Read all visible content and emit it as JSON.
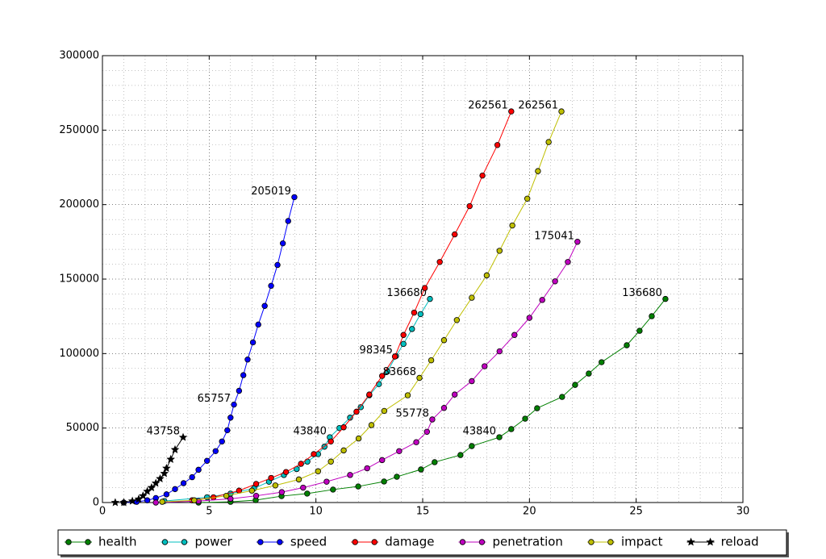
{
  "chart_data": {
    "type": "line",
    "xlim": [
      0,
      30
    ],
    "xticks": [
      0,
      5,
      10,
      15,
      20,
      25,
      30
    ],
    "ylim": [
      0,
      300000
    ],
    "yticks": [
      0,
      50000,
      100000,
      150000,
      200000,
      250000,
      300000
    ],
    "grid": true,
    "minor_grid": true,
    "legend": "bottom",
    "series": [
      {
        "name": "health",
        "color": "#008000",
        "marker": "circle",
        "x": [
          4.5,
          6.0,
          7.18,
          8.39,
          9.59,
          10.8,
          11.98,
          13.19,
          13.79,
          14.92,
          15.56,
          16.77,
          17.3,
          18.59,
          19.15,
          19.8,
          20.36,
          21.53,
          22.14,
          22.78,
          23.38,
          24.56,
          25.16,
          25.73,
          26.37
        ],
        "values": [
          0,
          500,
          1600,
          4300,
          6000,
          8700,
          10800,
          14100,
          17300,
          22200,
          27100,
          31900,
          37900,
          43840,
          49300,
          56300,
          63300,
          70900,
          79000,
          86600,
          94200,
          105600,
          115300,
          125100,
          136680
        ],
        "value_labels": [
          null,
          null,
          null,
          null,
          null,
          null,
          null,
          null,
          null,
          null,
          null,
          null,
          null,
          "43840",
          null,
          null,
          null,
          null,
          null,
          null,
          null,
          null,
          null,
          null,
          "136680"
        ]
      },
      {
        "name": "power",
        "color": "#00bfbf",
        "marker": "circle",
        "x": [
          2.9,
          4.9,
          6.0,
          7.1,
          7.8,
          8.5,
          9.1,
          9.6,
          10.1,
          10.4,
          10.65,
          11.1,
          11.6,
          12.1,
          12.5,
          12.95,
          13.35,
          13.75,
          14.1,
          14.5,
          14.9,
          15.34
        ],
        "values": [
          1000,
          3500,
          6000,
          9500,
          14000,
          18500,
          22500,
          27500,
          32500,
          37500,
          43840,
          50000,
          57000,
          64000,
          72000,
          79500,
          88000,
          98345,
          106500,
          116500,
          126500,
          136680
        ],
        "value_labels": [
          null,
          null,
          null,
          null,
          null,
          null,
          null,
          null,
          null,
          null,
          "43840",
          null,
          null,
          null,
          null,
          null,
          null,
          "98345",
          null,
          null,
          null,
          "136680"
        ]
      },
      {
        "name": "speed",
        "color": "#0000ff",
        "marker": "circle",
        "x": [
          1.0,
          1.6,
          2.1,
          2.5,
          3.0,
          3.4,
          3.8,
          4.2,
          4.5,
          4.9,
          5.3,
          5.6,
          5.85,
          6.0,
          6.16,
          6.4,
          6.6,
          6.8,
          7.05,
          7.3,
          7.6,
          7.9,
          8.2,
          8.45,
          8.7,
          8.99
        ],
        "values": [
          0,
          500,
          1500,
          3000,
          5500,
          9000,
          13000,
          17000,
          22000,
          28000,
          34500,
          41000,
          48500,
          57000,
          65757,
          75000,
          85500,
          96000,
          107500,
          119500,
          132000,
          145500,
          159500,
          174000,
          189000,
          205019
        ],
        "value_labels": [
          null,
          null,
          null,
          null,
          null,
          null,
          null,
          null,
          null,
          null,
          null,
          null,
          null,
          null,
          "65757",
          null,
          null,
          null,
          null,
          null,
          null,
          null,
          null,
          null,
          null,
          "205019"
        ]
      },
      {
        "name": "damage",
        "color": "#ff0000",
        "marker": "circle",
        "x": [
          4.2,
          5.2,
          6.4,
          7.2,
          7.9,
          8.6,
          9.3,
          9.9,
          10.7,
          11.3,
          11.9,
          12.5,
          13.1,
          13.7,
          14.1,
          14.6,
          15.1,
          15.8,
          16.5,
          17.2,
          17.8,
          18.5,
          19.15
        ],
        "values": [
          1500,
          3500,
          8000,
          12500,
          16500,
          20500,
          26000,
          32500,
          41000,
          50500,
          61000,
          72500,
          85000,
          98000,
          112500,
          127500,
          144000,
          161500,
          180000,
          199000,
          219500,
          240000,
          262561
        ],
        "value_labels": [
          null,
          null,
          null,
          null,
          null,
          null,
          null,
          null,
          null,
          null,
          null,
          null,
          null,
          null,
          null,
          null,
          null,
          null,
          null,
          null,
          null,
          null,
          "262561"
        ]
      },
      {
        "name": "penetration",
        "color": "#bf00bf",
        "marker": "circle",
        "x": [
          2.5,
          4.5,
          6.0,
          7.2,
          8.4,
          9.4,
          10.5,
          11.6,
          12.4,
          13.1,
          13.9,
          14.7,
          15.2,
          15.45,
          16.0,
          16.5,
          17.3,
          17.9,
          18.6,
          19.3,
          20.0,
          20.6,
          21.2,
          21.8,
          22.25
        ],
        "values": [
          0,
          1000,
          2500,
          4500,
          7000,
          10000,
          14000,
          18500,
          23000,
          28500,
          34500,
          40500,
          47500,
          55778,
          63500,
          72500,
          81500,
          91500,
          101500,
          112500,
          124000,
          136000,
          148500,
          161500,
          175041
        ],
        "value_labels": [
          null,
          null,
          null,
          null,
          null,
          null,
          null,
          null,
          null,
          null,
          null,
          null,
          null,
          "55778",
          null,
          null,
          null,
          null,
          null,
          null,
          null,
          null,
          null,
          null,
          "175041"
        ]
      },
      {
        "name": "impact",
        "color": "#bfbf00",
        "marker": "circle",
        "x": [
          2.8,
          4.3,
          5.8,
          7.0,
          8.1,
          9.2,
          10.1,
          10.7,
          11.3,
          12.0,
          12.6,
          13.2,
          14.3,
          14.85,
          15.4,
          16.0,
          16.6,
          17.3,
          18.0,
          18.6,
          19.2,
          19.9,
          20.4,
          20.9,
          21.5
        ],
        "values": [
          500,
          1500,
          4500,
          8000,
          11500,
          15500,
          21000,
          27500,
          35000,
          43000,
          52000,
          61500,
          72000,
          83668,
          95500,
          109000,
          122500,
          137500,
          152500,
          169000,
          186000,
          204000,
          222500,
          242000,
          262561
        ],
        "value_labels": [
          null,
          null,
          null,
          null,
          null,
          null,
          null,
          null,
          null,
          null,
          null,
          null,
          null,
          "83668",
          null,
          null,
          null,
          null,
          null,
          null,
          null,
          null,
          null,
          null,
          "262561"
        ]
      },
      {
        "name": "reload",
        "color": "#000000",
        "marker": "star",
        "x": [
          0.6,
          1.0,
          1.4,
          1.7,
          1.9,
          2.1,
          2.3,
          2.5,
          2.7,
          2.9,
          3.0,
          3.2,
          3.4,
          3.78
        ],
        "values": [
          0,
          0,
          1000,
          2300,
          4500,
          7500,
          10000,
          13000,
          16000,
          19500,
          23000,
          29000,
          35500,
          43758
        ],
        "value_labels": [
          null,
          null,
          null,
          null,
          null,
          null,
          null,
          null,
          null,
          null,
          null,
          null,
          null,
          "43758"
        ]
      }
    ]
  }
}
